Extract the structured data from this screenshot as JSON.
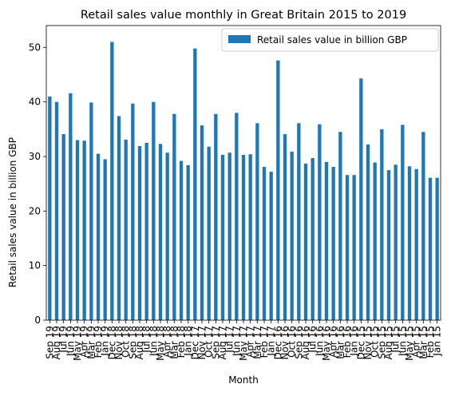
{
  "chart_data": {
    "type": "bar",
    "title": "Retail sales value monthly in Great Britain 2015 to 2019",
    "xlabel": "Month",
    "ylabel": "Retail sales value in billion GBP",
    "ylim": [
      0,
      54
    ],
    "yticks": [
      0,
      10,
      20,
      30,
      40,
      50
    ],
    "grid": false,
    "legend_position": "top-right",
    "bar_color": "#1f77b4",
    "categories": [
      "Sep 19",
      "Aug 19",
      "Jul 19",
      "Jun 19",
      "May 19",
      "Apr 19",
      "Mar 19",
      "Feb 19",
      "Jan 19",
      "Dec 18",
      "Nov 18",
      "Oct 18",
      "Sep 18",
      "Aug 18",
      "Jul 18",
      "Jun 18",
      "May 18",
      "Apr 18",
      "Mar 18",
      "Feb 18",
      "Jan 18",
      "Dec 17",
      "Nov 17",
      "Oct 17",
      "Sep 17",
      "Aug 17",
      "Jul 17",
      "Jun 17",
      "May 17",
      "Apr 17",
      "Mar 17",
      "Feb 17",
      "Jan 17",
      "Dec 16",
      "Nov 16",
      "Oct 16",
      "Sep 16",
      "Aug 16",
      "Jul 16",
      "Jun 16",
      "May 16",
      "Apr 16",
      "Mar 16",
      "Feb 16",
      "Jan 16",
      "Dec 15",
      "Nov 15",
      "Oct 15",
      "Sep 15",
      "Aug 15",
      "Jul 15",
      "Jun 15",
      "May 15",
      "Apr 15",
      "Mar 15",
      "Feb 15",
      "Jan 15"
    ],
    "series": [
      {
        "name": "Retail sales value in billion GBP",
        "values": [
          41.0,
          40.0,
          34.1,
          41.6,
          33.0,
          32.9,
          39.9,
          30.5,
          29.5,
          51.0,
          37.4,
          33.1,
          39.7,
          31.9,
          32.5,
          40.0,
          32.3,
          30.7,
          37.8,
          29.2,
          28.4,
          49.8,
          35.7,
          31.8,
          37.8,
          30.3,
          30.7,
          38.0,
          30.3,
          30.4,
          36.1,
          28.1,
          27.2,
          47.6,
          34.1,
          30.9,
          36.1,
          28.7,
          29.7,
          35.9,
          29.0,
          28.1,
          34.5,
          26.6,
          26.6,
          44.3,
          32.2,
          28.9,
          35.0,
          27.5,
          28.5,
          35.8,
          28.2,
          27.7,
          34.5,
          26.1,
          26.1
        ]
      }
    ]
  }
}
